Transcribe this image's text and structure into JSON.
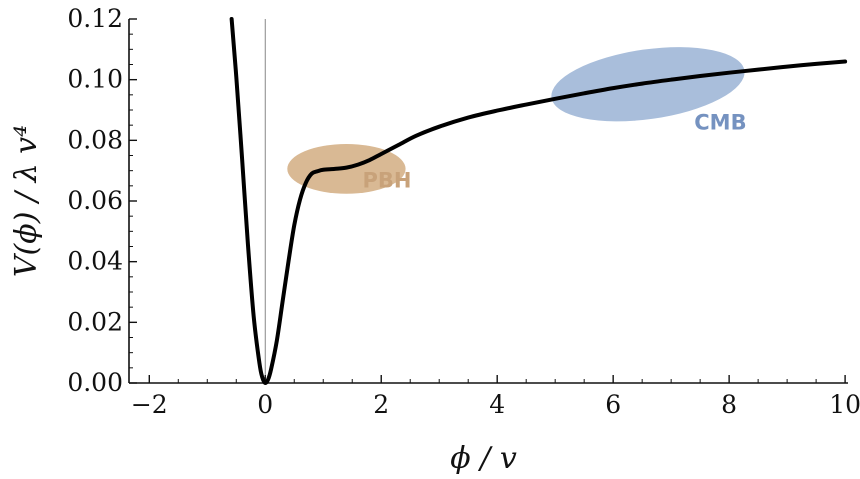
{
  "chart_data": {
    "type": "line",
    "title": "",
    "xlabel": "ϕ / v",
    "ylabel": "V(ϕ) / λ v⁴",
    "xlim": [
      -2.35,
      10.05
    ],
    "ylim": [
      0.0,
      0.12
    ],
    "x_ticks": [
      -2,
      0,
      2,
      4,
      6,
      8,
      10
    ],
    "x_tick_labels": [
      "−2",
      "0",
      "2",
      "4",
      "6",
      "8",
      "10"
    ],
    "y_ticks": [
      0.0,
      0.02,
      0.04,
      0.06,
      0.08,
      0.1,
      0.12
    ],
    "y_tick_labels": [
      "0.00",
      "0.02",
      "0.04",
      "0.06",
      "0.08",
      "0.10",
      "0.12"
    ],
    "grid": false,
    "vertical_reference_line_x": 0,
    "series": [
      {
        "color": "#000000",
        "x": [
          -0.58,
          -0.5,
          -0.4,
          -0.3,
          -0.2,
          -0.1,
          -0.05,
          0.0,
          0.05,
          0.1,
          0.2,
          0.3,
          0.4,
          0.5,
          0.6,
          0.7,
          0.8,
          0.9,
          1.0,
          1.2,
          1.4,
          1.6,
          1.8,
          2.0,
          2.3,
          2.6,
          3.0,
          3.5,
          4.0,
          4.5,
          5.0,
          5.5,
          6.0,
          6.5,
          7.0,
          7.5,
          8.0,
          8.5,
          9.0,
          9.5,
          10.0
        ],
        "y": [
          0.12,
          0.101,
          0.074,
          0.046,
          0.022,
          0.0065,
          0.0018,
          0.0,
          0.0012,
          0.0045,
          0.014,
          0.027,
          0.04,
          0.052,
          0.0605,
          0.066,
          0.069,
          0.0698,
          0.0703,
          0.0706,
          0.071,
          0.072,
          0.0735,
          0.0755,
          0.0785,
          0.0815,
          0.0845,
          0.0875,
          0.0898,
          0.0918,
          0.0937,
          0.0955,
          0.0972,
          0.0987,
          0.1,
          0.1012,
          0.1023,
          0.1033,
          0.1043,
          0.1052,
          0.106
        ]
      }
    ],
    "regions": [
      {
        "label": "PBH",
        "color": "#d9b994",
        "label_color": "#c8a27a",
        "cx": 1.4,
        "cy": 0.0706,
        "rx": 1.02,
        "ry": 0.0082,
        "rotation_deg": 0,
        "label_x": 2.1,
        "label_y": 0.0645
      },
      {
        "label": "CMB",
        "color": "#a9bedb",
        "label_color": "#7592c0",
        "cx": 6.6,
        "cy": 0.0985,
        "rx": 1.68,
        "ry": 0.0115,
        "rotation_deg": -8,
        "label_x": 7.85,
        "label_y": 0.0835
      }
    ]
  }
}
